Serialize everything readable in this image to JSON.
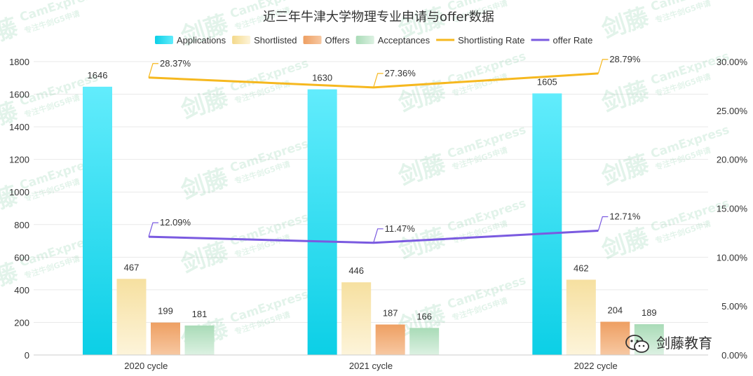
{
  "chart_data": {
    "type": "bar",
    "title": "近三年牛津大学物理专业申请与offer数据",
    "categories": [
      "2020 cycle",
      "2021 cycle",
      "2022 cycle"
    ],
    "series": [
      {
        "name": "Applications",
        "kind": "bar",
        "axis": "left",
        "values": [
          1646,
          1630,
          1605
        ],
        "color": "#16d0ea"
      },
      {
        "name": "Shortlisted",
        "kind": "bar",
        "axis": "left",
        "values": [
          467,
          446,
          462
        ],
        "color": "#f4d98a"
      },
      {
        "name": "Offers",
        "kind": "bar",
        "axis": "left",
        "values": [
          199,
          187,
          204
        ],
        "color": "#f2a464"
      },
      {
        "name": "Acceptances",
        "kind": "bar",
        "axis": "left",
        "values": [
          181,
          166,
          189
        ],
        "color": "#b8e0c2"
      },
      {
        "name": "Shortlisting Rate",
        "kind": "line",
        "axis": "right",
        "values": [
          28.37,
          27.36,
          28.79
        ],
        "labels": [
          "28.37%",
          "27.36%",
          "28.79%"
        ],
        "color": "#f6b81f"
      },
      {
        "name": "offer Rate",
        "kind": "line",
        "axis": "right",
        "values": [
          12.09,
          11.47,
          12.71
        ],
        "labels": [
          "12.09%",
          "11.47%",
          "12.71%"
        ],
        "color": "#7a5ae0"
      }
    ],
    "left_axis": {
      "min": 0,
      "max": 1800,
      "ticks": [
        "0",
        "200",
        "400",
        "600",
        "800",
        "1000",
        "1200",
        "1400",
        "1600",
        "1800"
      ]
    },
    "right_axis": {
      "min": 0,
      "max": 30,
      "ticks": [
        "0.00%",
        "5.00%",
        "10.00%",
        "15.00%",
        "20.00%",
        "25.00%",
        "30.00%"
      ]
    },
    "grid": true,
    "legend_position": "top"
  },
  "watermark": {
    "brand": "剑藤",
    "text": "CamExpress",
    "subtext": "专注牛剑G5申请"
  },
  "corner_brand": {
    "label": "剑藤教育",
    "icon": "wechat-icon"
  }
}
